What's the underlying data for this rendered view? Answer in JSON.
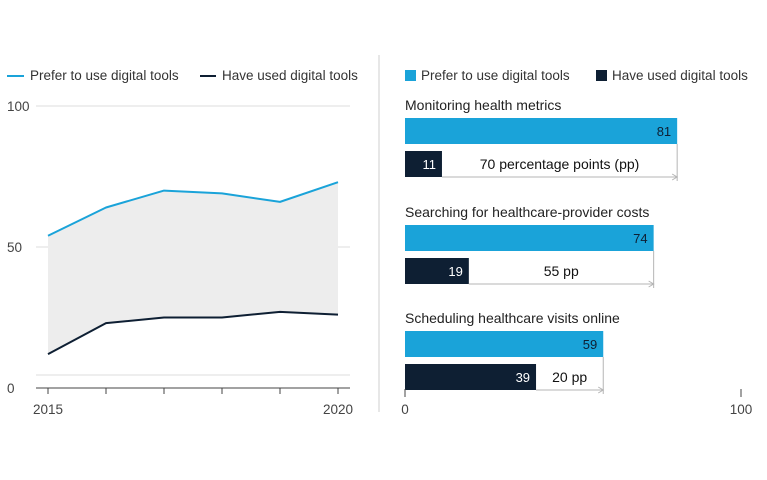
{
  "colors": {
    "prefer": "#1aa3d9",
    "used": "#0e1f33",
    "shade": "#ededed",
    "grid": "#dddddd",
    "axis": "#444444",
    "gap_line": "#b5b5b5",
    "divider": "#cfcfcf"
  },
  "chart_data": [
    {
      "type": "line",
      "legend": [
        "Prefer to use digital tools",
        "Have used digital tools"
      ],
      "legend_position": "top",
      "x": [
        2015,
        2016,
        2017,
        2018,
        2019,
        2020
      ],
      "x_tick_labels": [
        "2015",
        "",
        "",
        "",
        "",
        "2020"
      ],
      "y_ticks": [
        "0",
        "50",
        "100"
      ],
      "ylim": [
        0,
        100
      ],
      "grid": true,
      "series": [
        {
          "name": "Prefer to use digital tools",
          "values": [
            54,
            64,
            70,
            69,
            66,
            73
          ]
        },
        {
          "name": "Have used digital tools",
          "values": [
            12,
            23,
            25,
            25,
            27,
            26
          ]
        }
      ],
      "shade_between_series": true
    },
    {
      "type": "bar",
      "orientation": "horizontal",
      "legend": [
        "Prefer to use digital tools",
        "Have used digital tools"
      ],
      "legend_position": "top",
      "xlim": [
        0,
        100
      ],
      "x_ticks": [
        "0",
        "100"
      ],
      "groups": [
        {
          "label": "Monitoring health metrics",
          "prefer": 81,
          "used": 11,
          "gap_label": "70 percentage points (pp)"
        },
        {
          "label": "Searching for healthcare-provider costs",
          "prefer": 74,
          "used": 19,
          "gap_label": "55 pp"
        },
        {
          "label": "Scheduling healthcare visits online",
          "prefer": 59,
          "used": 39,
          "gap_label": "20 pp"
        }
      ]
    }
  ]
}
